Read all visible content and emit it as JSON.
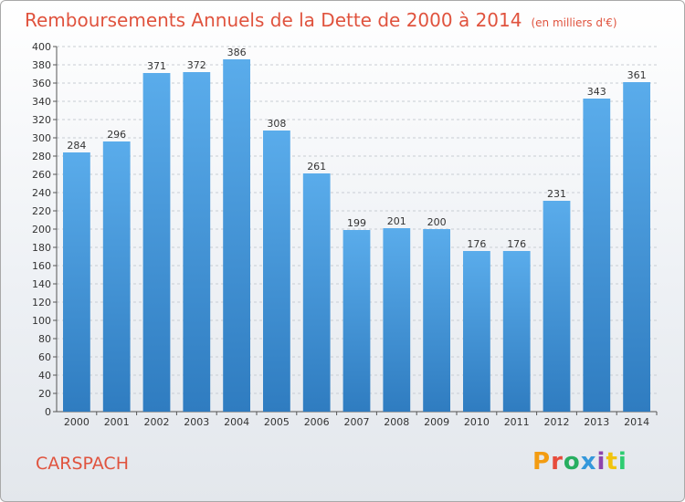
{
  "header": {
    "title": "Remboursements Annuels de la Dette de 2000 à 2014",
    "subtitle": "(en milliers d'€)"
  },
  "footer": {
    "commune": "CARSPACH",
    "logo_text": "Proxiti"
  },
  "colors": {
    "accent": "#e0533e",
    "bar_top": "#5aaceb",
    "bar_bottom": "#2f7cc0"
  },
  "chart_data": {
    "type": "bar",
    "title": "Remboursements Annuels de la Dette de 2000 à 2014",
    "subtitle": "(en milliers d'€)",
    "categories": [
      "2000",
      "2001",
      "2002",
      "2003",
      "2004",
      "2005",
      "2006",
      "2007",
      "2008",
      "2009",
      "2010",
      "2011",
      "2012",
      "2013",
      "2014"
    ],
    "values": [
      284,
      296,
      371,
      372,
      386,
      308,
      261,
      199,
      201,
      200,
      176,
      176,
      231,
      343,
      361
    ],
    "ylim": [
      0,
      400
    ],
    "ytick_step": 20,
    "grid": true,
    "data_labels": true
  }
}
